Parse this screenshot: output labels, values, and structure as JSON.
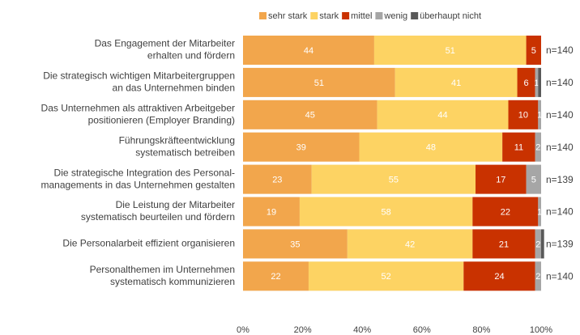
{
  "chart_data": {
    "type": "stacked_barh",
    "categories": [
      [
        "Das Engagement der Mitarbeiter",
        "erhalten und fördern"
      ],
      [
        "Die strategisch wichtigen Mitarbeitergruppen",
        "an das Unternehmen binden"
      ],
      [
        "Das Unternehmen als attraktiven Arbeitgeber",
        "positionieren (Employer Branding)"
      ],
      [
        "Führungskräfteentwicklung",
        "systematisch betreiben"
      ],
      [
        "Die strategische Integration des Personal-",
        "managements in das Unternehmen gestalten"
      ],
      [
        "Die Leistung der Mitarbeiter",
        "systematisch beurteilen und fördern"
      ],
      [
        "Die Personalarbeit effizient organisieren"
      ],
      [
        "Personalthemen im Unternehmen",
        "systematisch kommunizieren"
      ]
    ],
    "series": [
      {
        "name": "sehr stark",
        "color": "#f2a64c",
        "values": [
          44,
          51,
          45,
          39,
          23,
          19,
          35,
          22
        ]
      },
      {
        "name": "stark",
        "color": "#fdd363",
        "values": [
          51,
          41,
          44,
          48,
          55,
          58,
          42,
          52
        ]
      },
      {
        "name": "mittel",
        "color": "#c93200",
        "values": [
          5,
          6,
          10,
          11,
          17,
          22,
          21,
          24
        ]
      },
      {
        "name": "wenig",
        "color": "#a6a6a6",
        "values": [
          0,
          1,
          1,
          2,
          5,
          1,
          2,
          2
        ],
        "value_labels": [
          null,
          "1",
          "1",
          "2",
          "5",
          "1",
          "2",
          "2"
        ]
      },
      {
        "name": "überhaupt nicht",
        "color": "#595959",
        "values": [
          0,
          1,
          0,
          0,
          0,
          0,
          1,
          0
        ],
        "value_labels": [
          null,
          null,
          null,
          null,
          null,
          null,
          null,
          null
        ]
      }
    ],
    "n_labels": [
      "n=140",
      "n=140",
      "n=140",
      "n=140",
      "n=139",
      "n=140",
      "n=139",
      "n=140"
    ],
    "xlim": [
      0,
      100
    ],
    "xticks": [
      {
        "value": 0,
        "label": "0%"
      },
      {
        "value": 20,
        "label": "20%"
      },
      {
        "value": 40,
        "label": "40%"
      },
      {
        "value": 60,
        "label": "60%"
      },
      {
        "value": 80,
        "label": "80%"
      },
      {
        "value": 100,
        "label": "100%"
      }
    ],
    "legend": "top"
  }
}
